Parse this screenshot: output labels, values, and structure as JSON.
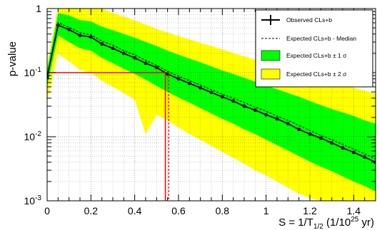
{
  "chart_data": {
    "type": "line",
    "ylabel": "p-value",
    "xlabel": {
      "main": "S = 1/T",
      "sub": "1/2",
      "unit_open": " (1/10",
      "sup": "25",
      "unit_close": " yr)"
    },
    "xlim": [
      0,
      1.5
    ],
    "ylim": [
      0.001,
      1
    ],
    "yscale": "log",
    "grid": true,
    "legend_position": "top-right",
    "x_ticks": [
      {
        "value": 0,
        "label": "0"
      },
      {
        "value": 0.2,
        "label": "0.2"
      },
      {
        "value": 0.4,
        "label": "0.4"
      },
      {
        "value": 0.6,
        "label": "0.6"
      },
      {
        "value": 0.8,
        "label": "0.8"
      },
      {
        "value": 1.0,
        "label": "1"
      },
      {
        "value": 1.2,
        "label": "1.2"
      },
      {
        "value": 1.4,
        "label": "1.4"
      }
    ],
    "y_ticks": [
      {
        "value": 1,
        "base": "1",
        "exp": ""
      },
      {
        "value": 0.1,
        "base": "10",
        "exp": "-1"
      },
      {
        "value": 0.01,
        "base": "10",
        "exp": "-2"
      },
      {
        "value": 0.001,
        "base": "10",
        "exp": "-3"
      }
    ],
    "legend": [
      {
        "key": "observed",
        "label": "Observed CLs+b"
      },
      {
        "key": "median",
        "label": "Expected CLs+b - Median"
      },
      {
        "key": "band1",
        "label": "Expected CLs+b ± 1 σ"
      },
      {
        "key": "band2",
        "label": "Expected CLs+b ± 2 σ"
      }
    ],
    "x": [
      0,
      0.05,
      0.1,
      0.15,
      0.2,
      0.25,
      0.3,
      0.35,
      0.4,
      0.45,
      0.5,
      0.55,
      0.6,
      0.65,
      0.7,
      0.75,
      0.8,
      0.85,
      0.9,
      0.95,
      1.0,
      1.05,
      1.1,
      1.15,
      1.2,
      1.25,
      1.3,
      1.35,
      1.4,
      1.45,
      1.5
    ],
    "series": [
      {
        "name": "Observed CLs+b",
        "values": [
          0.085,
          0.55,
          0.47,
          0.38,
          0.36,
          0.28,
          0.24,
          0.2,
          0.17,
          0.14,
          0.12,
          0.095,
          0.08,
          0.068,
          0.058,
          0.049,
          0.042,
          0.036,
          0.03,
          0.026,
          0.022,
          0.019,
          0.016,
          0.013,
          0.011,
          0.0095,
          0.008,
          0.0067,
          0.0057,
          0.0048,
          0.004
        ]
      },
      {
        "name": "Expected CLs+b - Median",
        "values": [
          0.087,
          0.6,
          0.51,
          0.42,
          0.39,
          0.31,
          0.27,
          0.22,
          0.19,
          0.155,
          0.13,
          0.105,
          0.088,
          0.075,
          0.064,
          0.054,
          0.046,
          0.04,
          0.034,
          0.029,
          0.025,
          0.021,
          0.018,
          0.015,
          0.0125,
          0.0105,
          0.009,
          0.0076,
          0.0064,
          0.0054,
          0.0045
        ]
      }
    ],
    "band_1sigma": {
      "low": [
        0.06,
        0.38,
        0.3,
        0.24,
        0.22,
        0.17,
        0.14,
        0.115,
        0.095,
        0.078,
        0.062,
        0.05,
        0.041,
        0.034,
        0.028,
        0.023,
        0.019,
        0.016,
        0.013,
        0.011,
        0.009,
        0.0074,
        0.0061,
        0.005,
        0.0041,
        0.0034,
        0.0029,
        0.0024,
        0.002,
        0.0017,
        0.0014
      ],
      "high": [
        0.11,
        0.85,
        0.78,
        0.66,
        0.63,
        0.52,
        0.46,
        0.4,
        0.35,
        0.3,
        0.26,
        0.22,
        0.19,
        0.165,
        0.145,
        0.125,
        0.108,
        0.095,
        0.083,
        0.072,
        0.063,
        0.055,
        0.048,
        0.042,
        0.036,
        0.031,
        0.027,
        0.024,
        0.021,
        0.018,
        0.016
      ]
    },
    "band_2sigma": {
      "low": [
        0.035,
        0.2,
        0.15,
        0.11,
        0.1,
        0.075,
        0.06,
        0.048,
        0.038,
        0.011,
        0.022,
        0.018,
        0.014,
        0.011,
        0.009,
        0.0072,
        0.0058,
        0.0047,
        0.0038,
        0.003,
        0.0025,
        0.002,
        0.0016,
        0.0013,
        0.0011,
        0.001,
        0.001,
        0.001,
        0.001,
        0.001,
        0.001
      ],
      "high": [
        0.13,
        1,
        1,
        1,
        1,
        1,
        0.85,
        0.75,
        0.65,
        0.56,
        0.48,
        0.42,
        0.37,
        0.33,
        0.29,
        0.26,
        0.23,
        0.2,
        0.18,
        0.16,
        0.14,
        0.125,
        0.11,
        0.1,
        0.09,
        0.08,
        0.072,
        0.065,
        0.058,
        0.052,
        0.047
      ]
    },
    "reference_lines": {
      "p_value": 0.1,
      "observed_limit": 0.54,
      "expected_limit": 0.555
    },
    "colors": {
      "band_1sigma": "#00ff00",
      "band_2sigma": "#ffff00",
      "observed": "#000000",
      "expected": "#000000",
      "reference": "#ff0000"
    }
  }
}
